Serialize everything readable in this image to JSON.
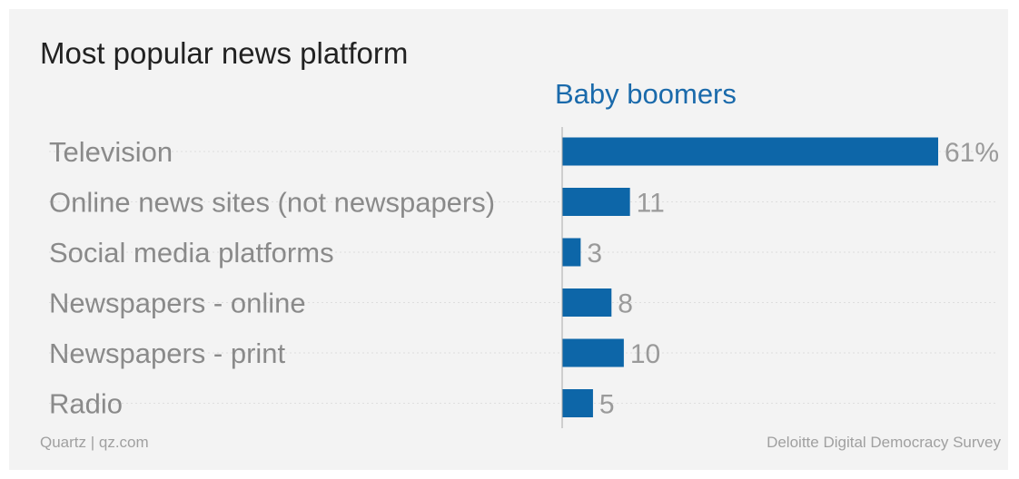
{
  "title": "Most popular news platform",
  "source_left": "Quartz | qz.com",
  "source_right": "Deloitte Digital Democracy Survey",
  "colors": {
    "bar": "#0d66a8",
    "series_heading": "#1a6aab",
    "category_text": "#8a8a8a",
    "value_text": "#9a9a9a",
    "gridline": "#dedede",
    "axis": "#aaaaaa"
  },
  "chart_data": {
    "type": "bar",
    "orientation": "horizontal",
    "title": "Most popular news platform",
    "categories": [
      "Television",
      "Online news sites (not newspapers)",
      "Social media platforms",
      "Newspapers - online",
      "Newspapers - print",
      "Radio"
    ],
    "series": [
      {
        "name": "Baby boomers",
        "values": [
          61,
          11,
          3,
          8,
          10,
          5
        ],
        "value_labels": [
          "61%",
          "11",
          "3",
          "8",
          "10",
          "5"
        ]
      }
    ],
    "xlim": [
      0,
      61
    ],
    "grid": "dotted guide lines",
    "legend": "series name above bars"
  }
}
